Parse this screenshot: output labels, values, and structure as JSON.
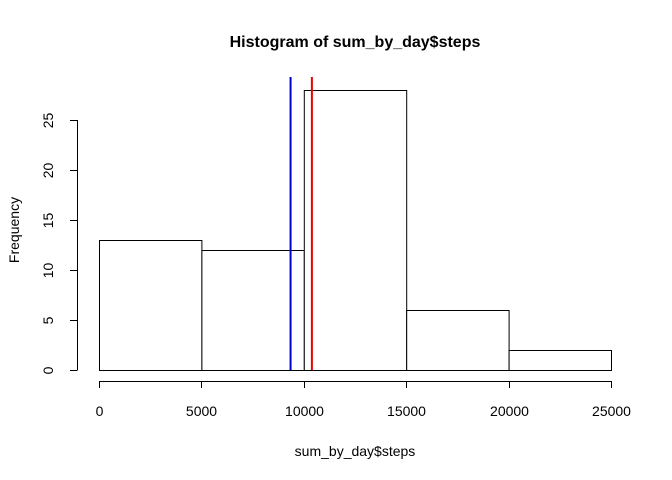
{
  "chart_data": {
    "type": "bar",
    "title": "Histogram of sum_by_day$steps",
    "xlabel": "sum_by_day$steps",
    "ylabel": "Frequency",
    "bins": [
      {
        "from": 0,
        "to": 5000,
        "count": 13
      },
      {
        "from": 5000,
        "to": 10000,
        "count": 12
      },
      {
        "from": 10000,
        "to": 15000,
        "count": 28
      },
      {
        "from": 15000,
        "to": 20000,
        "count": 6
      },
      {
        "from": 20000,
        "to": 25000,
        "count": 2
      }
    ],
    "xlim": [
      0,
      25000
    ],
    "ylim": [
      0,
      28
    ],
    "x_ticks": [
      "0",
      "5000",
      "10000",
      "15000",
      "20000",
      "25000"
    ],
    "y_ticks": [
      "0",
      "5",
      "10",
      "15",
      "20",
      "25"
    ],
    "vlines": [
      {
        "x": 9354,
        "color": "#0000cc"
      },
      {
        "x": 10395,
        "color": "#ee0000"
      }
    ],
    "bar_fill": "#ffffff",
    "bar_stroke": "#000000",
    "grid": false,
    "legend": "none"
  }
}
